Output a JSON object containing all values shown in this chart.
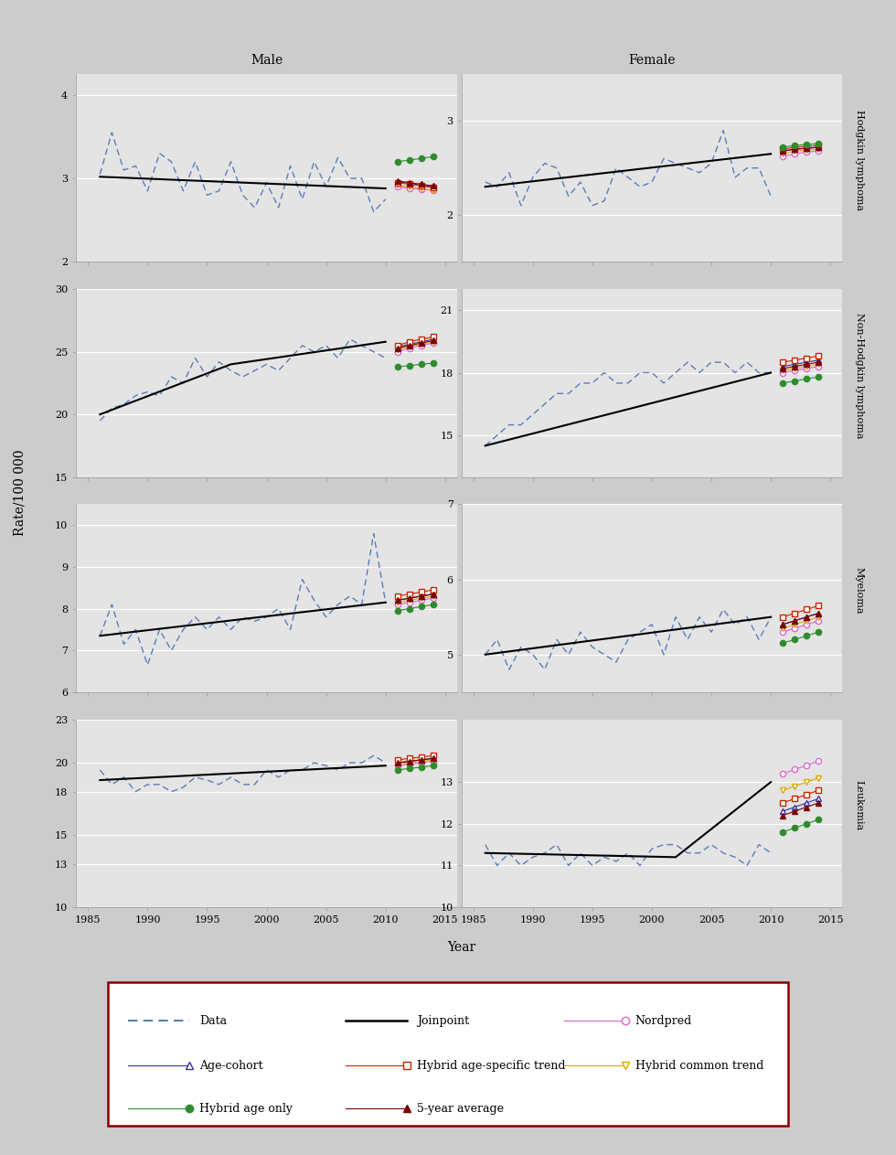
{
  "panels": [
    {
      "row": 0,
      "cancer": "Hodgkin lymphoma",
      "male": {
        "ylim": [
          2.0,
          4.25
        ],
        "yticks": [
          2.0,
          3.0,
          4.0
        ],
        "ytick_labels": [
          "2",
          "3",
          "4"
        ],
        "data_years": [
          1986,
          1987,
          1988,
          1989,
          1990,
          1991,
          1992,
          1993,
          1994,
          1995,
          1996,
          1997,
          1998,
          1999,
          2000,
          2001,
          2002,
          2003,
          2004,
          2005,
          2006,
          2007,
          2008,
          2009,
          2010
        ],
        "data_vals": [
          3.05,
          3.55,
          3.1,
          3.15,
          2.85,
          3.3,
          3.2,
          2.85,
          3.2,
          2.8,
          2.85,
          3.2,
          2.8,
          2.65,
          2.95,
          2.65,
          3.15,
          2.75,
          3.2,
          2.9,
          3.25,
          3.0,
          3.0,
          2.6,
          2.75
        ],
        "joinpoint_years": [
          1986,
          2010
        ],
        "joinpoint_vals": [
          3.02,
          2.88
        ],
        "proj_years": [
          2011,
          2012,
          2013,
          2014
        ],
        "hybrid_age_only": [
          3.2,
          3.22,
          3.24,
          3.26
        ],
        "hybrid_age_specific": [
          2.95,
          2.93,
          2.91,
          2.89
        ],
        "five_year_avg": [
          2.97,
          2.95,
          2.93,
          2.91
        ],
        "age_cohort": [
          2.96,
          2.94,
          2.92,
          2.9
        ],
        "nordpred": [
          2.9,
          2.88,
          2.87,
          2.86
        ],
        "hybrid_common": [
          2.92,
          2.9,
          2.88,
          2.86
        ]
      },
      "female": {
        "ylim": [
          1.5,
          3.5
        ],
        "yticks": [
          2.0,
          3.0
        ],
        "ytick_labels": [
          "2",
          "3"
        ],
        "data_years": [
          1986,
          1987,
          1988,
          1989,
          1990,
          1991,
          1992,
          1993,
          1994,
          1995,
          1996,
          1997,
          1998,
          1999,
          2000,
          2001,
          2002,
          2003,
          2004,
          2005,
          2006,
          2007,
          2008,
          2009,
          2010
        ],
        "data_vals": [
          2.35,
          2.3,
          2.45,
          2.1,
          2.4,
          2.55,
          2.5,
          2.2,
          2.35,
          2.1,
          2.15,
          2.5,
          2.4,
          2.3,
          2.35,
          2.6,
          2.55,
          2.5,
          2.45,
          2.55,
          2.9,
          2.4,
          2.5,
          2.5,
          2.2
        ],
        "joinpoint_years": [
          1986,
          2010
        ],
        "joinpoint_vals": [
          2.3,
          2.65
        ],
        "proj_years": [
          2011,
          2012,
          2013,
          2014
        ],
        "hybrid_age_only": [
          2.72,
          2.74,
          2.75,
          2.76
        ],
        "hybrid_age_specific": [
          2.7,
          2.72,
          2.73,
          2.74
        ],
        "five_year_avg": [
          2.68,
          2.7,
          2.71,
          2.72
        ],
        "age_cohort": [
          2.68,
          2.7,
          2.71,
          2.72
        ],
        "nordpred": [
          2.62,
          2.65,
          2.67,
          2.68
        ],
        "hybrid_common": [
          2.65,
          2.68,
          2.69,
          2.7
        ]
      }
    },
    {
      "row": 1,
      "cancer": "Non-Hodgkin lymphoma",
      "male": {
        "ylim": [
          15.0,
          30.0
        ],
        "yticks": [
          15,
          20,
          25,
          30
        ],
        "ytick_labels": [
          "15",
          "20",
          "25",
          "30"
        ],
        "data_years": [
          1986,
          1987,
          1988,
          1989,
          1990,
          1991,
          1992,
          1993,
          1994,
          1995,
          1996,
          1997,
          1998,
          1999,
          2000,
          2001,
          2002,
          2003,
          2004,
          2005,
          2006,
          2007,
          2008,
          2009,
          2010
        ],
        "data_vals": [
          19.5,
          20.5,
          20.8,
          21.5,
          21.8,
          21.5,
          23.0,
          22.5,
          24.5,
          23.0,
          24.2,
          23.5,
          23.0,
          23.5,
          24.0,
          23.5,
          24.5,
          25.5,
          25.0,
          25.5,
          24.5,
          26.0,
          25.5,
          25.0,
          24.5
        ],
        "joinpoint_years": [
          1986,
          1997,
          2010
        ],
        "joinpoint_vals": [
          20.0,
          24.0,
          25.8
        ],
        "proj_years": [
          2011,
          2012,
          2013,
          2014
        ],
        "hybrid_age_only": [
          23.8,
          23.9,
          24.0,
          24.1
        ],
        "hybrid_age_specific": [
          25.5,
          25.8,
          26.0,
          26.2
        ],
        "five_year_avg": [
          25.3,
          25.5,
          25.7,
          25.9
        ],
        "age_cohort": [
          25.4,
          25.6,
          25.8,
          26.0
        ],
        "nordpred": [
          25.0,
          25.3,
          25.5,
          25.7
        ],
        "hybrid_common": [
          25.2,
          25.4,
          25.6,
          25.8
        ]
      },
      "female": {
        "ylim": [
          13.0,
          22.0
        ],
        "yticks": [
          15,
          18,
          21
        ],
        "ytick_labels": [
          "15",
          "18",
          "21"
        ],
        "data_years": [
          1986,
          1987,
          1988,
          1989,
          1990,
          1991,
          1992,
          1993,
          1994,
          1995,
          1996,
          1997,
          1998,
          1999,
          2000,
          2001,
          2002,
          2003,
          2004,
          2005,
          2006,
          2007,
          2008,
          2009,
          2010
        ],
        "data_vals": [
          14.5,
          15.0,
          15.5,
          15.5,
          16.0,
          16.5,
          17.0,
          17.0,
          17.5,
          17.5,
          18.0,
          17.5,
          17.5,
          18.0,
          18.0,
          17.5,
          18.0,
          18.5,
          18.0,
          18.5,
          18.5,
          18.0,
          18.5,
          18.0,
          18.0
        ],
        "joinpoint_years": [
          1986,
          2010
        ],
        "joinpoint_vals": [
          14.5,
          18.0
        ],
        "proj_years": [
          2011,
          2012,
          2013,
          2014
        ],
        "hybrid_age_only": [
          17.5,
          17.6,
          17.7,
          17.8
        ],
        "hybrid_age_specific": [
          18.5,
          18.6,
          18.7,
          18.8
        ],
        "five_year_avg": [
          18.2,
          18.3,
          18.4,
          18.5
        ],
        "age_cohort": [
          18.3,
          18.4,
          18.5,
          18.6
        ],
        "nordpred": [
          18.0,
          18.1,
          18.2,
          18.3
        ],
        "hybrid_common": [
          18.1,
          18.2,
          18.3,
          18.4
        ]
      }
    },
    {
      "row": 2,
      "cancer": "Myeloma",
      "male": {
        "ylim": [
          6.0,
          10.5
        ],
        "yticks": [
          6,
          7,
          8,
          9,
          10
        ],
        "ytick_labels": [
          "6",
          "7",
          "8",
          "9",
          "10"
        ],
        "data_years": [
          1986,
          1987,
          1988,
          1989,
          1990,
          1991,
          1992,
          1993,
          1994,
          1995,
          1996,
          1997,
          1998,
          1999,
          2000,
          2001,
          2002,
          2003,
          2004,
          2005,
          2006,
          2007,
          2008,
          2009,
          2010
        ],
        "data_vals": [
          7.35,
          8.1,
          7.15,
          7.5,
          6.65,
          7.5,
          7.0,
          7.5,
          7.8,
          7.5,
          7.8,
          7.5,
          7.8,
          7.7,
          7.8,
          8.0,
          7.5,
          8.7,
          8.2,
          7.8,
          8.1,
          8.3,
          8.1,
          9.8,
          8.15
        ],
        "joinpoint_years": [
          1986,
          2010
        ],
        "joinpoint_vals": [
          7.35,
          8.15
        ],
        "proj_years": [
          2011,
          2012,
          2013,
          2014
        ],
        "hybrid_age_only": [
          7.95,
          8.0,
          8.05,
          8.1
        ],
        "hybrid_age_specific": [
          8.3,
          8.35,
          8.4,
          8.45
        ],
        "five_year_avg": [
          8.2,
          8.25,
          8.3,
          8.35
        ],
        "age_cohort": [
          8.2,
          8.25,
          8.3,
          8.35
        ],
        "nordpred": [
          8.1,
          8.15,
          8.2,
          8.25
        ],
        "hybrid_common": [
          8.15,
          8.2,
          8.25,
          8.3
        ]
      },
      "female": {
        "ylim": [
          4.5,
          7.0
        ],
        "yticks": [
          5,
          6,
          7
        ],
        "ytick_labels": [
          "5",
          "6",
          "7"
        ],
        "data_years": [
          1986,
          1987,
          1988,
          1989,
          1990,
          1991,
          1992,
          1993,
          1994,
          1995,
          1996,
          1997,
          1998,
          1999,
          2000,
          2001,
          2002,
          2003,
          2004,
          2005,
          2006,
          2007,
          2008,
          2009,
          2010
        ],
        "data_vals": [
          5.0,
          5.2,
          4.8,
          5.1,
          5.0,
          4.8,
          5.2,
          5.0,
          5.3,
          5.1,
          5.0,
          4.9,
          5.2,
          5.3,
          5.4,
          5.0,
          5.5,
          5.2,
          5.5,
          5.3,
          5.6,
          5.4,
          5.5,
          5.2,
          5.5
        ],
        "joinpoint_years": [
          1986,
          2010
        ],
        "joinpoint_vals": [
          5.0,
          5.5
        ],
        "proj_years": [
          2011,
          2012,
          2013,
          2014
        ],
        "hybrid_age_only": [
          5.15,
          5.2,
          5.25,
          5.3
        ],
        "hybrid_age_specific": [
          5.5,
          5.55,
          5.6,
          5.65
        ],
        "five_year_avg": [
          5.4,
          5.45,
          5.5,
          5.55
        ],
        "age_cohort": [
          5.4,
          5.45,
          5.5,
          5.55
        ],
        "nordpred": [
          5.3,
          5.35,
          5.4,
          5.45
        ],
        "hybrid_common": [
          5.35,
          5.4,
          5.45,
          5.5
        ]
      }
    },
    {
      "row": 3,
      "cancer": "Leukemia",
      "male": {
        "ylim": [
          10.0,
          23.0
        ],
        "yticks": [
          10,
          13,
          15,
          18,
          20,
          23
        ],
        "ytick_labels": [
          "10",
          "13",
          "15",
          "18",
          "20",
          "23"
        ],
        "data_years": [
          1986,
          1987,
          1988,
          1989,
          1990,
          1991,
          1992,
          1993,
          1994,
          1995,
          1996,
          1997,
          1998,
          1999,
          2000,
          2001,
          2002,
          2003,
          2004,
          2005,
          2006,
          2007,
          2008,
          2009,
          2010
        ],
        "data_vals": [
          19.5,
          18.5,
          19.0,
          18.0,
          18.5,
          18.5,
          18.0,
          18.3,
          19.0,
          18.8,
          18.5,
          19.0,
          18.5,
          18.5,
          19.5,
          19.0,
          19.5,
          19.5,
          20.0,
          19.8,
          19.5,
          20.0,
          20.0,
          20.5,
          20.0
        ],
        "joinpoint_years": [
          1986,
          2010
        ],
        "joinpoint_vals": [
          18.8,
          19.8
        ],
        "proj_years": [
          2011,
          2012,
          2013,
          2014
        ],
        "hybrid_age_only": [
          19.5,
          19.6,
          19.7,
          19.8
        ],
        "hybrid_age_specific": [
          20.2,
          20.3,
          20.4,
          20.5
        ],
        "five_year_avg": [
          20.0,
          20.1,
          20.2,
          20.3
        ],
        "age_cohort": [
          20.0,
          20.1,
          20.2,
          20.3
        ],
        "nordpred": [
          19.8,
          19.9,
          20.0,
          20.1
        ],
        "hybrid_common": [
          19.9,
          20.0,
          20.1,
          20.2
        ]
      },
      "female": {
        "ylim": [
          10.0,
          14.5
        ],
        "yticks": [
          10,
          11,
          12,
          13
        ],
        "ytick_labels": [
          "10",
          "11",
          "12",
          "13"
        ],
        "data_years": [
          1986,
          1987,
          1988,
          1989,
          1990,
          1991,
          1992,
          1993,
          1994,
          1995,
          1996,
          1997,
          1998,
          1999,
          2000,
          2001,
          2002,
          2003,
          2004,
          2005,
          2006,
          2007,
          2008,
          2009,
          2010
        ],
        "data_vals": [
          11.5,
          11.0,
          11.3,
          11.0,
          11.2,
          11.3,
          11.5,
          11.0,
          11.3,
          11.0,
          11.2,
          11.1,
          11.3,
          11.0,
          11.4,
          11.5,
          11.5,
          11.3,
          11.3,
          11.5,
          11.3,
          11.2,
          11.0,
          11.5,
          11.3
        ],
        "joinpoint_years": [
          1986,
          2002,
          2010
        ],
        "joinpoint_vals": [
          11.3,
          11.2,
          13.0
        ],
        "proj_years": [
          2011,
          2012,
          2013,
          2014
        ],
        "hybrid_age_only": [
          11.8,
          11.9,
          12.0,
          12.1
        ],
        "hybrid_age_specific": [
          12.5,
          12.6,
          12.7,
          12.8
        ],
        "five_year_avg": [
          12.2,
          12.3,
          12.4,
          12.5
        ],
        "age_cohort": [
          12.3,
          12.4,
          12.5,
          12.6
        ],
        "nordpred": [
          13.2,
          13.3,
          13.4,
          13.5
        ],
        "hybrid_common": [
          12.8,
          12.9,
          13.0,
          13.1
        ]
      }
    }
  ],
  "colors": {
    "data": "#5b7bba",
    "joinpoint": "#000000",
    "hybrid_age_only": "#2e8b2e",
    "hybrid_age_specific": "#cc2200",
    "five_year_avg": "#7b0000",
    "age_cohort": "#3333aa",
    "nordpred": "#dd66cc",
    "hybrid_common": "#ddaa00"
  },
  "panel_bg": "#e4e4e4",
  "header_bg": "#c0c0d0",
  "fig_bg": "#cccccc",
  "top_bar_color": "#990000"
}
